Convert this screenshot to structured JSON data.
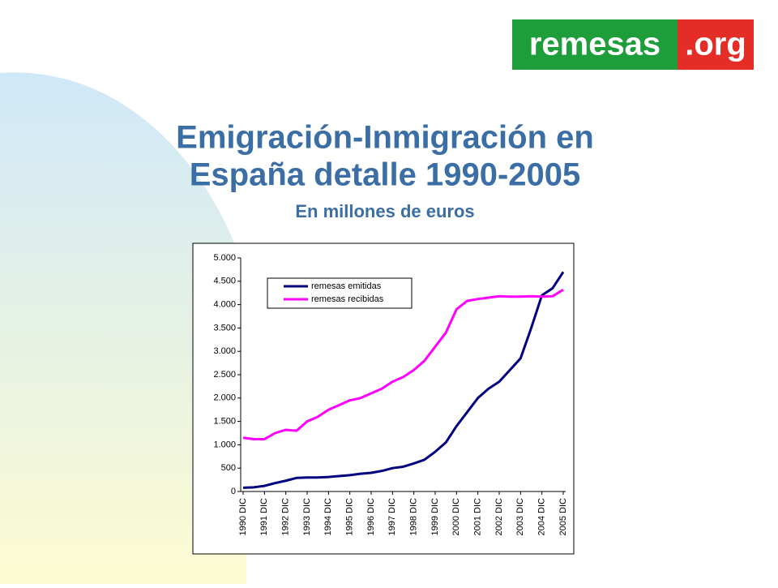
{
  "logo": {
    "left": "remesas",
    "right": ".org"
  },
  "chart_data": {
    "type": "line",
    "title": [
      "Emigración-Inmigración en",
      "España detalle 1990-2005"
    ],
    "subtitle": "En millones de euros",
    "categories": [
      "1990 DIC",
      null,
      "1991 DIC",
      null,
      "1992 DIC",
      null,
      "1993 DIC",
      null,
      "1994 DIC",
      null,
      "1995 DIC",
      null,
      "1996 DIC",
      null,
      "1997 DIC",
      null,
      "1998 DIC",
      null,
      "1999 DIC",
      null,
      "2000 DIC",
      null,
      "2001 DIC",
      null,
      "2002 DIC",
      null,
      "2003 DIC",
      null,
      "2004 DIC",
      null,
      "2005 DIC"
    ],
    "series": [
      {
        "name": "remesas emitidas",
        "color": "#000080",
        "values": [
          80,
          90,
          120,
          180,
          230,
          290,
          300,
          300,
          310,
          330,
          350,
          380,
          400,
          440,
          500,
          530,
          600,
          680,
          850,
          1050,
          1400,
          1700,
          2000,
          2200,
          2350,
          2600,
          2850,
          3500,
          4200,
          4350,
          4700
        ]
      },
      {
        "name": "remesas recibidas",
        "color": "#ff00ff",
        "values": [
          1150,
          1120,
          1120,
          1250,
          1320,
          1300,
          1500,
          1600,
          1750,
          1850,
          1950,
          2000,
          2100,
          2200,
          2350,
          2450,
          2600,
          2800,
          3100,
          3400,
          3900,
          4080,
          4120,
          4150,
          4180,
          4170,
          4170,
          4180,
          4170,
          4180,
          4320
        ]
      }
    ],
    "ylim": [
      0,
      5000
    ],
    "yticks": [
      0,
      500,
      {
        "value": 1000,
        "label": "1.000"
      },
      {
        "value": 1500,
        "label": "1.500"
      },
      {
        "value": 2000,
        "label": "2.000"
      },
      {
        "value": 2500,
        "label": "2.500"
      },
      {
        "value": 3000,
        "label": "3.000"
      },
      {
        "value": 3500,
        "label": "3.500"
      },
      {
        "value": 4000,
        "label": "4.000"
      },
      {
        "value": 4500,
        "label": "4.500"
      },
      {
        "value": 5000,
        "label": "5.000"
      }
    ],
    "legend": "upper left"
  }
}
